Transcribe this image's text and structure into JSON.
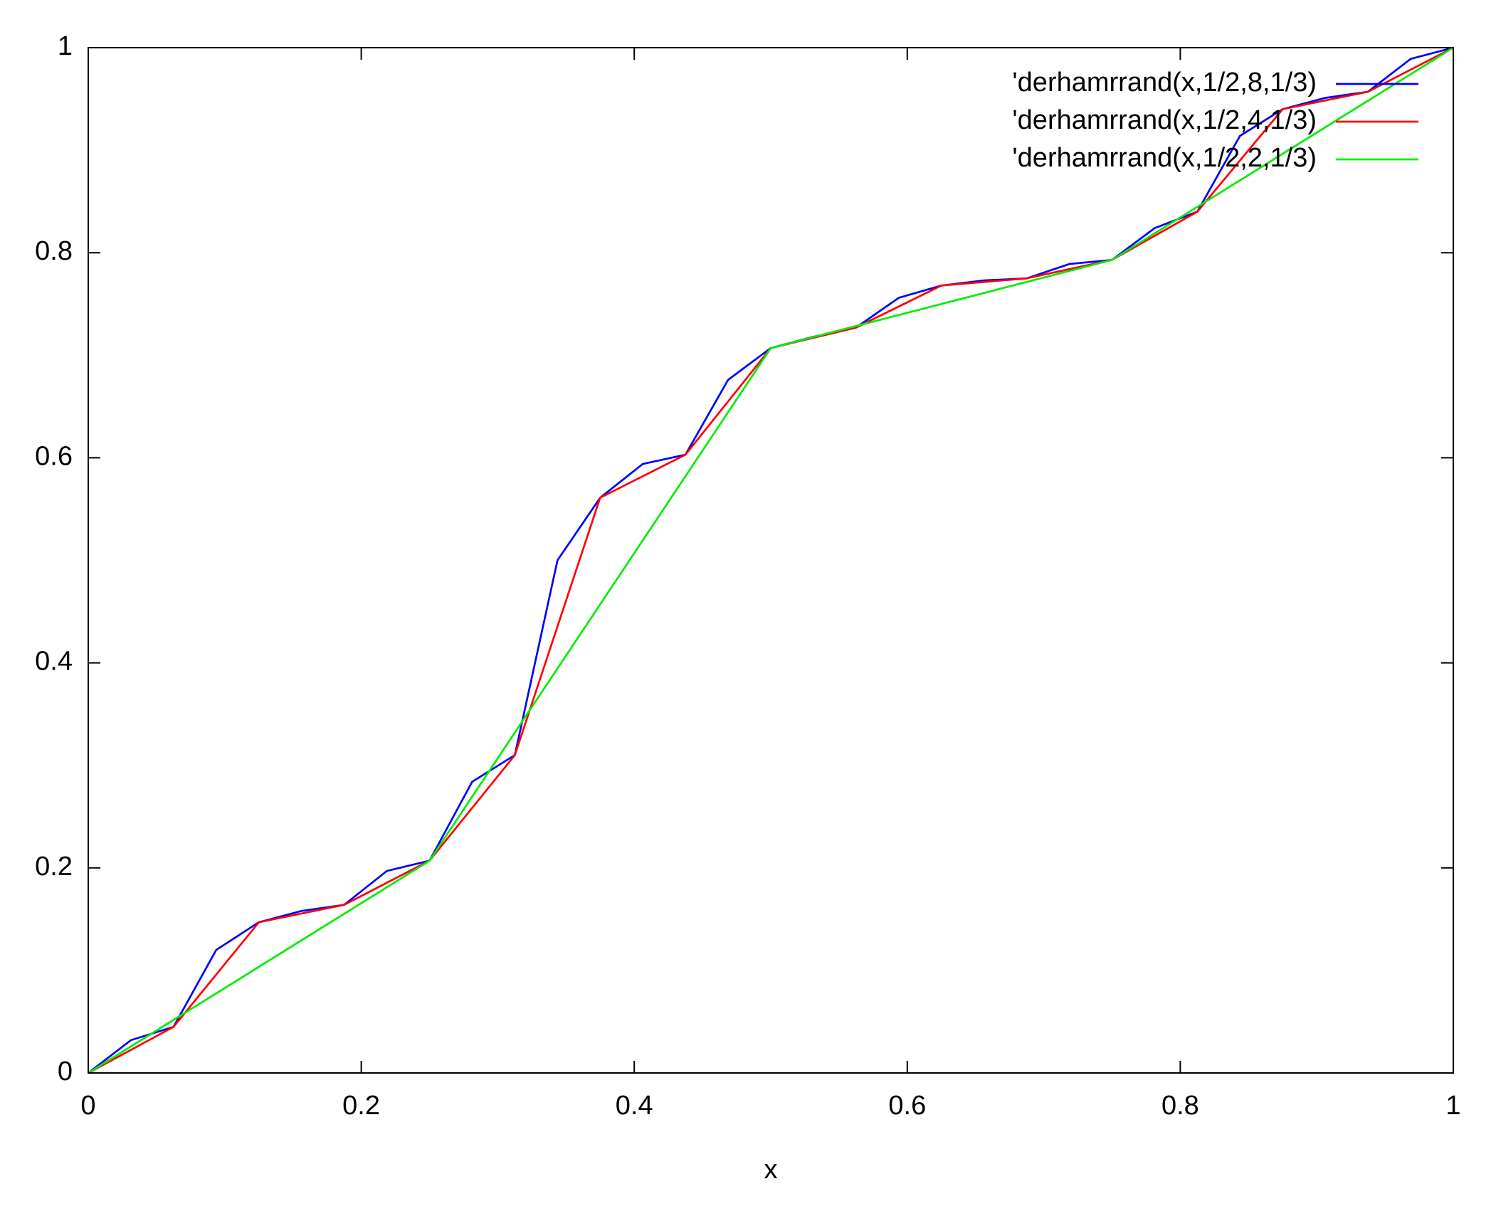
{
  "chart_data": {
    "type": "line",
    "xlabel": "x",
    "xlim": [
      0,
      1
    ],
    "ylim": [
      0,
      1
    ],
    "xticks": [
      0,
      0.2,
      0.4,
      0.6,
      0.8,
      1
    ],
    "yticks": [
      0,
      0.2,
      0.4,
      0.6,
      0.8,
      1
    ],
    "grid": false,
    "legend": "upper right",
    "series": [
      {
        "name": "'derhamrrand(x,1/2,8,1/3)",
        "color": "#0000ff",
        "x": [
          0,
          0.03125,
          0.0625,
          0.09375,
          0.125,
          0.15625,
          0.1875,
          0.21875,
          0.25,
          0.28125,
          0.3125,
          0.34375,
          0.375,
          0.40625,
          0.4375,
          0.46875,
          0.5,
          0.53125,
          0.5625,
          0.59375,
          0.625,
          0.65625,
          0.6875,
          0.71875,
          0.75,
          0.78125,
          0.8125,
          0.84375,
          0.875,
          0.90625,
          0.9375,
          0.96875,
          1
        ],
        "values": [
          0,
          0.032,
          0.045,
          0.12,
          0.147,
          0.158,
          0.164,
          0.197,
          0.207,
          0.284,
          0.31,
          0.5,
          0.561,
          0.594,
          0.603,
          0.676,
          0.707,
          0.718,
          0.727,
          0.756,
          0.768,
          0.773,
          0.775,
          0.789,
          0.793,
          0.824,
          0.84,
          0.914,
          0.94,
          0.951,
          0.957,
          0.989,
          1
        ]
      },
      {
        "name": "'derhamrrand(x,1/2,4,1/3)",
        "color": "#ff0000",
        "x": [
          0,
          0.0625,
          0.125,
          0.1875,
          0.25,
          0.3125,
          0.375,
          0.4375,
          0.5,
          0.5625,
          0.625,
          0.6875,
          0.75,
          0.8125,
          0.875,
          0.9375,
          1
        ],
        "values": [
          0,
          0.045,
          0.147,
          0.164,
          0.207,
          0.31,
          0.561,
          0.603,
          0.707,
          0.727,
          0.768,
          0.775,
          0.793,
          0.84,
          0.94,
          0.957,
          1
        ]
      },
      {
        "name": "'derhamrrand(x,1/2,2,1/3)",
        "color": "#00ee00",
        "x": [
          0,
          0.25,
          0.5,
          0.75,
          1
        ],
        "values": [
          0,
          0.207,
          0.707,
          0.793,
          1
        ]
      }
    ]
  }
}
